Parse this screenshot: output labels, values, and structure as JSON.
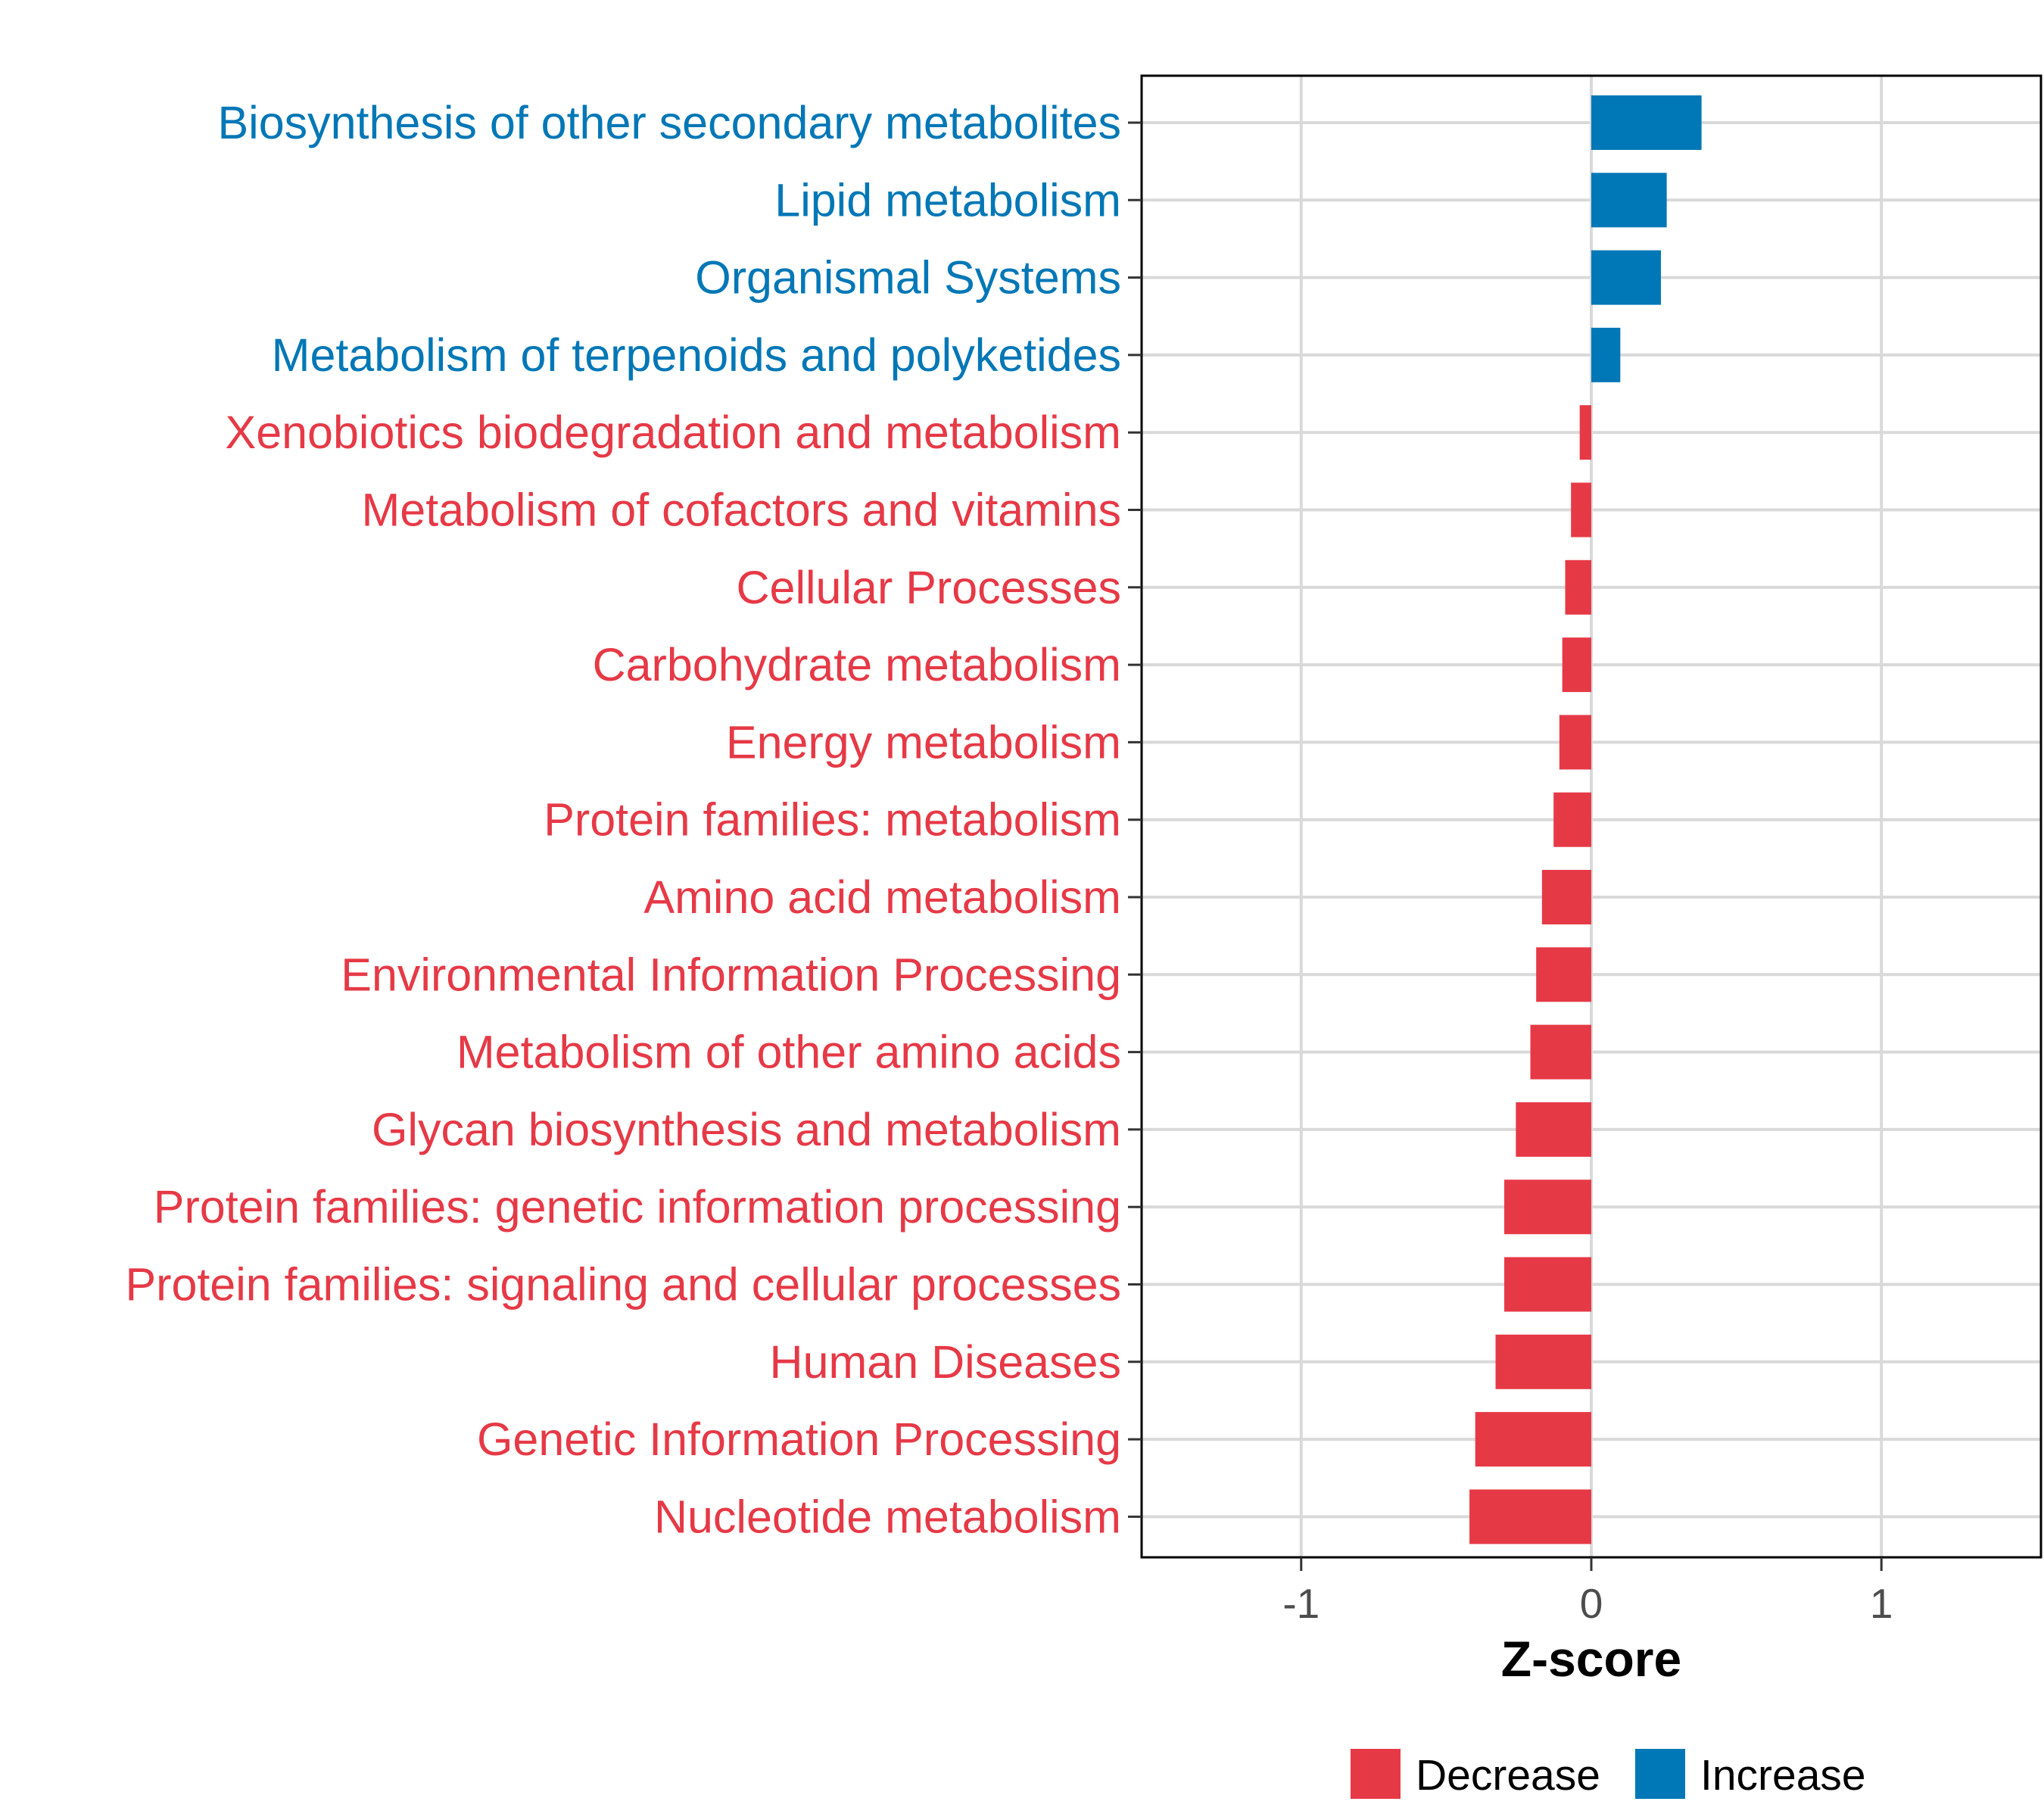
{
  "chart_data": {
    "type": "bar",
    "orientation": "horizontal",
    "title": "",
    "xlabel": "Z-score",
    "ylabel": "",
    "xlim": [
      -1.55,
      1.55
    ],
    "xticks": [
      -1,
      0,
      1
    ],
    "xtick_labels": [
      "-1",
      "0",
      "1"
    ],
    "grid": true,
    "colors": {
      "Decrease": "#e63946",
      "Increase": "#0077b6"
    },
    "categories": [
      "Biosynthesis of other secondary metabolites",
      "Lipid metabolism",
      "Organismal Systems",
      "Metabolism of terpenoids and polyketides",
      "Xenobiotics biodegradation and metabolism",
      "Metabolism of cofactors and vitamins",
      "Cellular Processes",
      "Carbohydrate metabolism",
      "Energy metabolism",
      "Protein families: metabolism",
      "Amino acid metabolism",
      "Environmental Information Processing",
      "Metabolism of other amino acids",
      "Glycan biosynthesis and metabolism",
      "Protein families: genetic information processing",
      "Protein families: signaling and cellular processes",
      "Human Diseases",
      "Genetic Information Processing",
      "Nucleotide metabolism"
    ],
    "values": [
      0.38,
      0.26,
      0.24,
      0.1,
      -0.04,
      -0.07,
      -0.09,
      -0.1,
      -0.11,
      -0.13,
      -0.17,
      -0.19,
      -0.21,
      -0.26,
      -0.3,
      -0.3,
      -0.33,
      -0.4,
      -0.42
    ],
    "groups": [
      "Increase",
      "Increase",
      "Increase",
      "Increase",
      "Decrease",
      "Decrease",
      "Decrease",
      "Decrease",
      "Decrease",
      "Decrease",
      "Decrease",
      "Decrease",
      "Decrease",
      "Decrease",
      "Decrease",
      "Decrease",
      "Decrease",
      "Decrease",
      "Decrease"
    ],
    "legend": {
      "position": "bottom",
      "entries": [
        {
          "label": "Decrease",
          "color": "#e63946"
        },
        {
          "label": "Increase",
          "color": "#0077b6"
        }
      ]
    }
  }
}
